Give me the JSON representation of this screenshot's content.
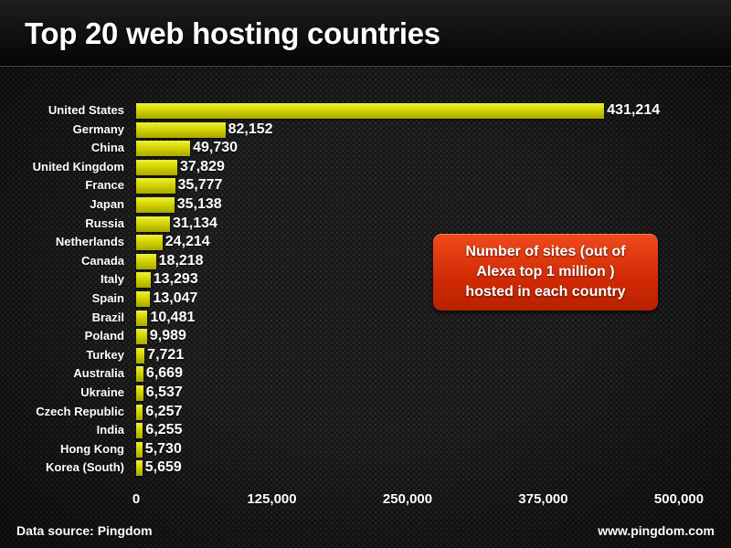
{
  "header": {
    "title": "Top 20 web hosting countries"
  },
  "annotation": {
    "text": "Number of sites (out of\nAlexa top 1 million )\nhosted in each country"
  },
  "footer": {
    "source": "Data source: Pingdom",
    "url": "www.pingdom.com"
  },
  "colors": {
    "bar": "#d4d400",
    "annotation_bg": "#d02a05",
    "background": "#151515",
    "text": "#ffffff"
  },
  "axis": {
    "ticks": [
      "0",
      "125,000",
      "250,000",
      "375,000",
      "500,000"
    ]
  },
  "rows": [
    {
      "country": "United States",
      "value": 431214,
      "label": "431,214"
    },
    {
      "country": "Germany",
      "value": 82152,
      "label": "82,152"
    },
    {
      "country": "China",
      "value": 49730,
      "label": "49,730"
    },
    {
      "country": "United Kingdom",
      "value": 37829,
      "label": "37,829"
    },
    {
      "country": "France",
      "value": 35777,
      "label": "35,777"
    },
    {
      "country": "Japan",
      "value": 35138,
      "label": "35,138"
    },
    {
      "country": "Russia",
      "value": 31134,
      "label": "31,134"
    },
    {
      "country": "Netherlands",
      "value": 24214,
      "label": "24,214"
    },
    {
      "country": "Canada",
      "value": 18218,
      "label": "18,218"
    },
    {
      "country": "Italy",
      "value": 13293,
      "label": "13,293"
    },
    {
      "country": "Spain",
      "value": 13047,
      "label": "13,047"
    },
    {
      "country": "Brazil",
      "value": 10481,
      "label": "10,481"
    },
    {
      "country": "Poland",
      "value": 9989,
      "label": "9,989"
    },
    {
      "country": "Turkey",
      "value": 7721,
      "label": "7,721"
    },
    {
      "country": "Australia",
      "value": 6669,
      "label": "6,669"
    },
    {
      "country": "Ukraine",
      "value": 6537,
      "label": "6,537"
    },
    {
      "country": "Czech Republic",
      "value": 6257,
      "label": "6,257"
    },
    {
      "country": "India",
      "value": 6255,
      "label": "6,255"
    },
    {
      "country": "Hong Kong",
      "value": 5730,
      "label": "5,730"
    },
    {
      "country": "Korea (South)",
      "value": 5659,
      "label": "5,659"
    }
  ],
  "chart_data": {
    "type": "bar",
    "orientation": "horizontal",
    "title": "Top 20 web hosting countries",
    "xlabel": "",
    "ylabel": "",
    "xlim": [
      0,
      500000
    ],
    "x_ticks": [
      0,
      125000,
      250000,
      375000,
      500000
    ],
    "grid": false,
    "legend": null,
    "annotations": [
      "Number of sites (out of Alexa top 1 million ) hosted in each country",
      "Data source: Pingdom",
      "www.pingdom.com"
    ],
    "categories": [
      "United States",
      "Germany",
      "China",
      "United Kingdom",
      "France",
      "Japan",
      "Russia",
      "Netherlands",
      "Canada",
      "Italy",
      "Spain",
      "Brazil",
      "Poland",
      "Turkey",
      "Australia",
      "Ukraine",
      "Czech Republic",
      "India",
      "Hong Kong",
      "Korea (South)"
    ],
    "values": [
      431214,
      82152,
      49730,
      37829,
      35777,
      35138,
      31134,
      24214,
      18218,
      13293,
      13047,
      10481,
      9989,
      7721,
      6669,
      6537,
      6257,
      6255,
      5730,
      5659
    ]
  }
}
